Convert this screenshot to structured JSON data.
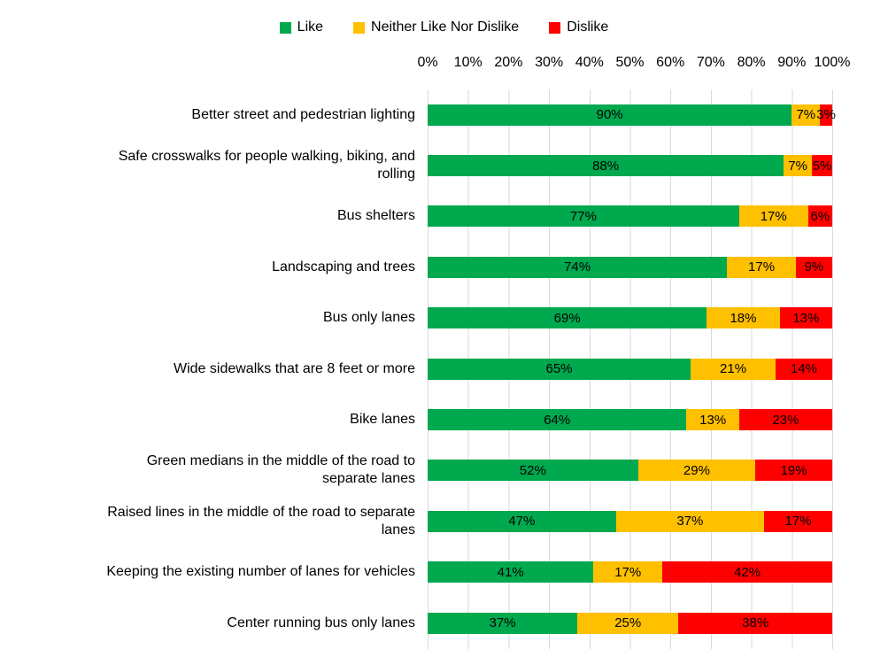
{
  "chart_data": {
    "type": "bar",
    "orientation": "horizontal",
    "stacked": true,
    "grid": "vertical",
    "legend_position": "top",
    "xlim": [
      0,
      100
    ],
    "x_ticks": [
      "0%",
      "10%",
      "20%",
      "30%",
      "40%",
      "50%",
      "60%",
      "70%",
      "80%",
      "90%",
      "100%"
    ],
    "data_label_format": "{value}%",
    "categories": [
      "Better street and pedestrian lighting",
      "Safe crosswalks for people walking, biking, and\nrolling",
      "Bus shelters",
      "Landscaping and trees",
      "Bus only lanes",
      "Wide sidewalks that are 8 feet or more",
      "Bike lanes",
      "Green medians in the middle of the road to\nseparate lanes",
      "Raised lines in the middle of the road to separate\nlanes",
      "Keeping the existing number of lanes for vehicles",
      "Center running bus only lanes"
    ],
    "series": [
      {
        "name": "Like",
        "color": "#00A84E",
        "values": [
          90,
          88,
          77,
          74,
          69,
          65,
          64,
          52,
          47,
          41,
          37
        ]
      },
      {
        "name": "Neither Like Nor Dislike",
        "color": "#FFC000",
        "values": [
          7,
          7,
          17,
          17,
          18,
          21,
          13,
          29,
          37,
          17,
          25
        ]
      },
      {
        "name": "Dislike",
        "color": "#FF0000",
        "values": [
          3,
          5,
          6,
          9,
          13,
          14,
          23,
          19,
          17,
          42,
          38
        ]
      }
    ],
    "colors": {
      "gridline": "#D9D9D9",
      "text": "#000000",
      "background": "#FFFFFF"
    }
  }
}
